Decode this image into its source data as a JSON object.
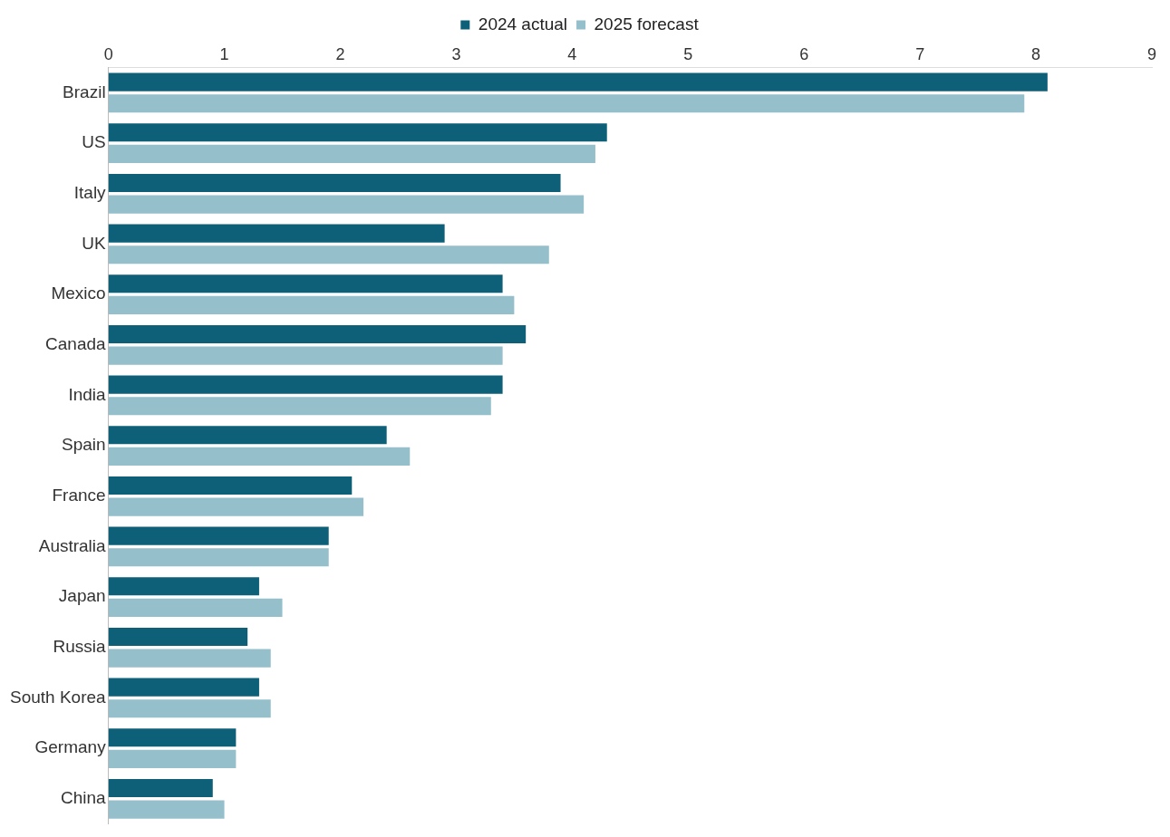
{
  "chart_data": {
    "type": "bar",
    "orientation": "horizontal",
    "categories": [
      "Brazil",
      "US",
      "Italy",
      "UK",
      "Mexico",
      "Canada",
      "India",
      "Spain",
      "France",
      "Australia",
      "Japan",
      "Russia",
      "South Korea",
      "Germany",
      "China"
    ],
    "series": [
      {
        "name": "2024 actual",
        "color": "#0e5f78",
        "values": [
          8.1,
          4.3,
          3.9,
          2.9,
          3.4,
          3.6,
          3.4,
          2.4,
          2.1,
          1.9,
          1.3,
          1.2,
          1.3,
          1.1,
          0.9
        ]
      },
      {
        "name": "2025 forecast",
        "color": "#94bfcb",
        "values": [
          7.9,
          4.2,
          4.1,
          3.8,
          3.5,
          3.4,
          3.3,
          2.6,
          2.2,
          1.9,
          1.5,
          1.4,
          1.4,
          1.1,
          1.0
        ]
      }
    ],
    "xlim": [
      0,
      9
    ],
    "xticks": [
      0,
      1,
      2,
      3,
      4,
      5,
      6,
      7,
      8,
      9
    ],
    "grid": false,
    "legend": "top"
  }
}
